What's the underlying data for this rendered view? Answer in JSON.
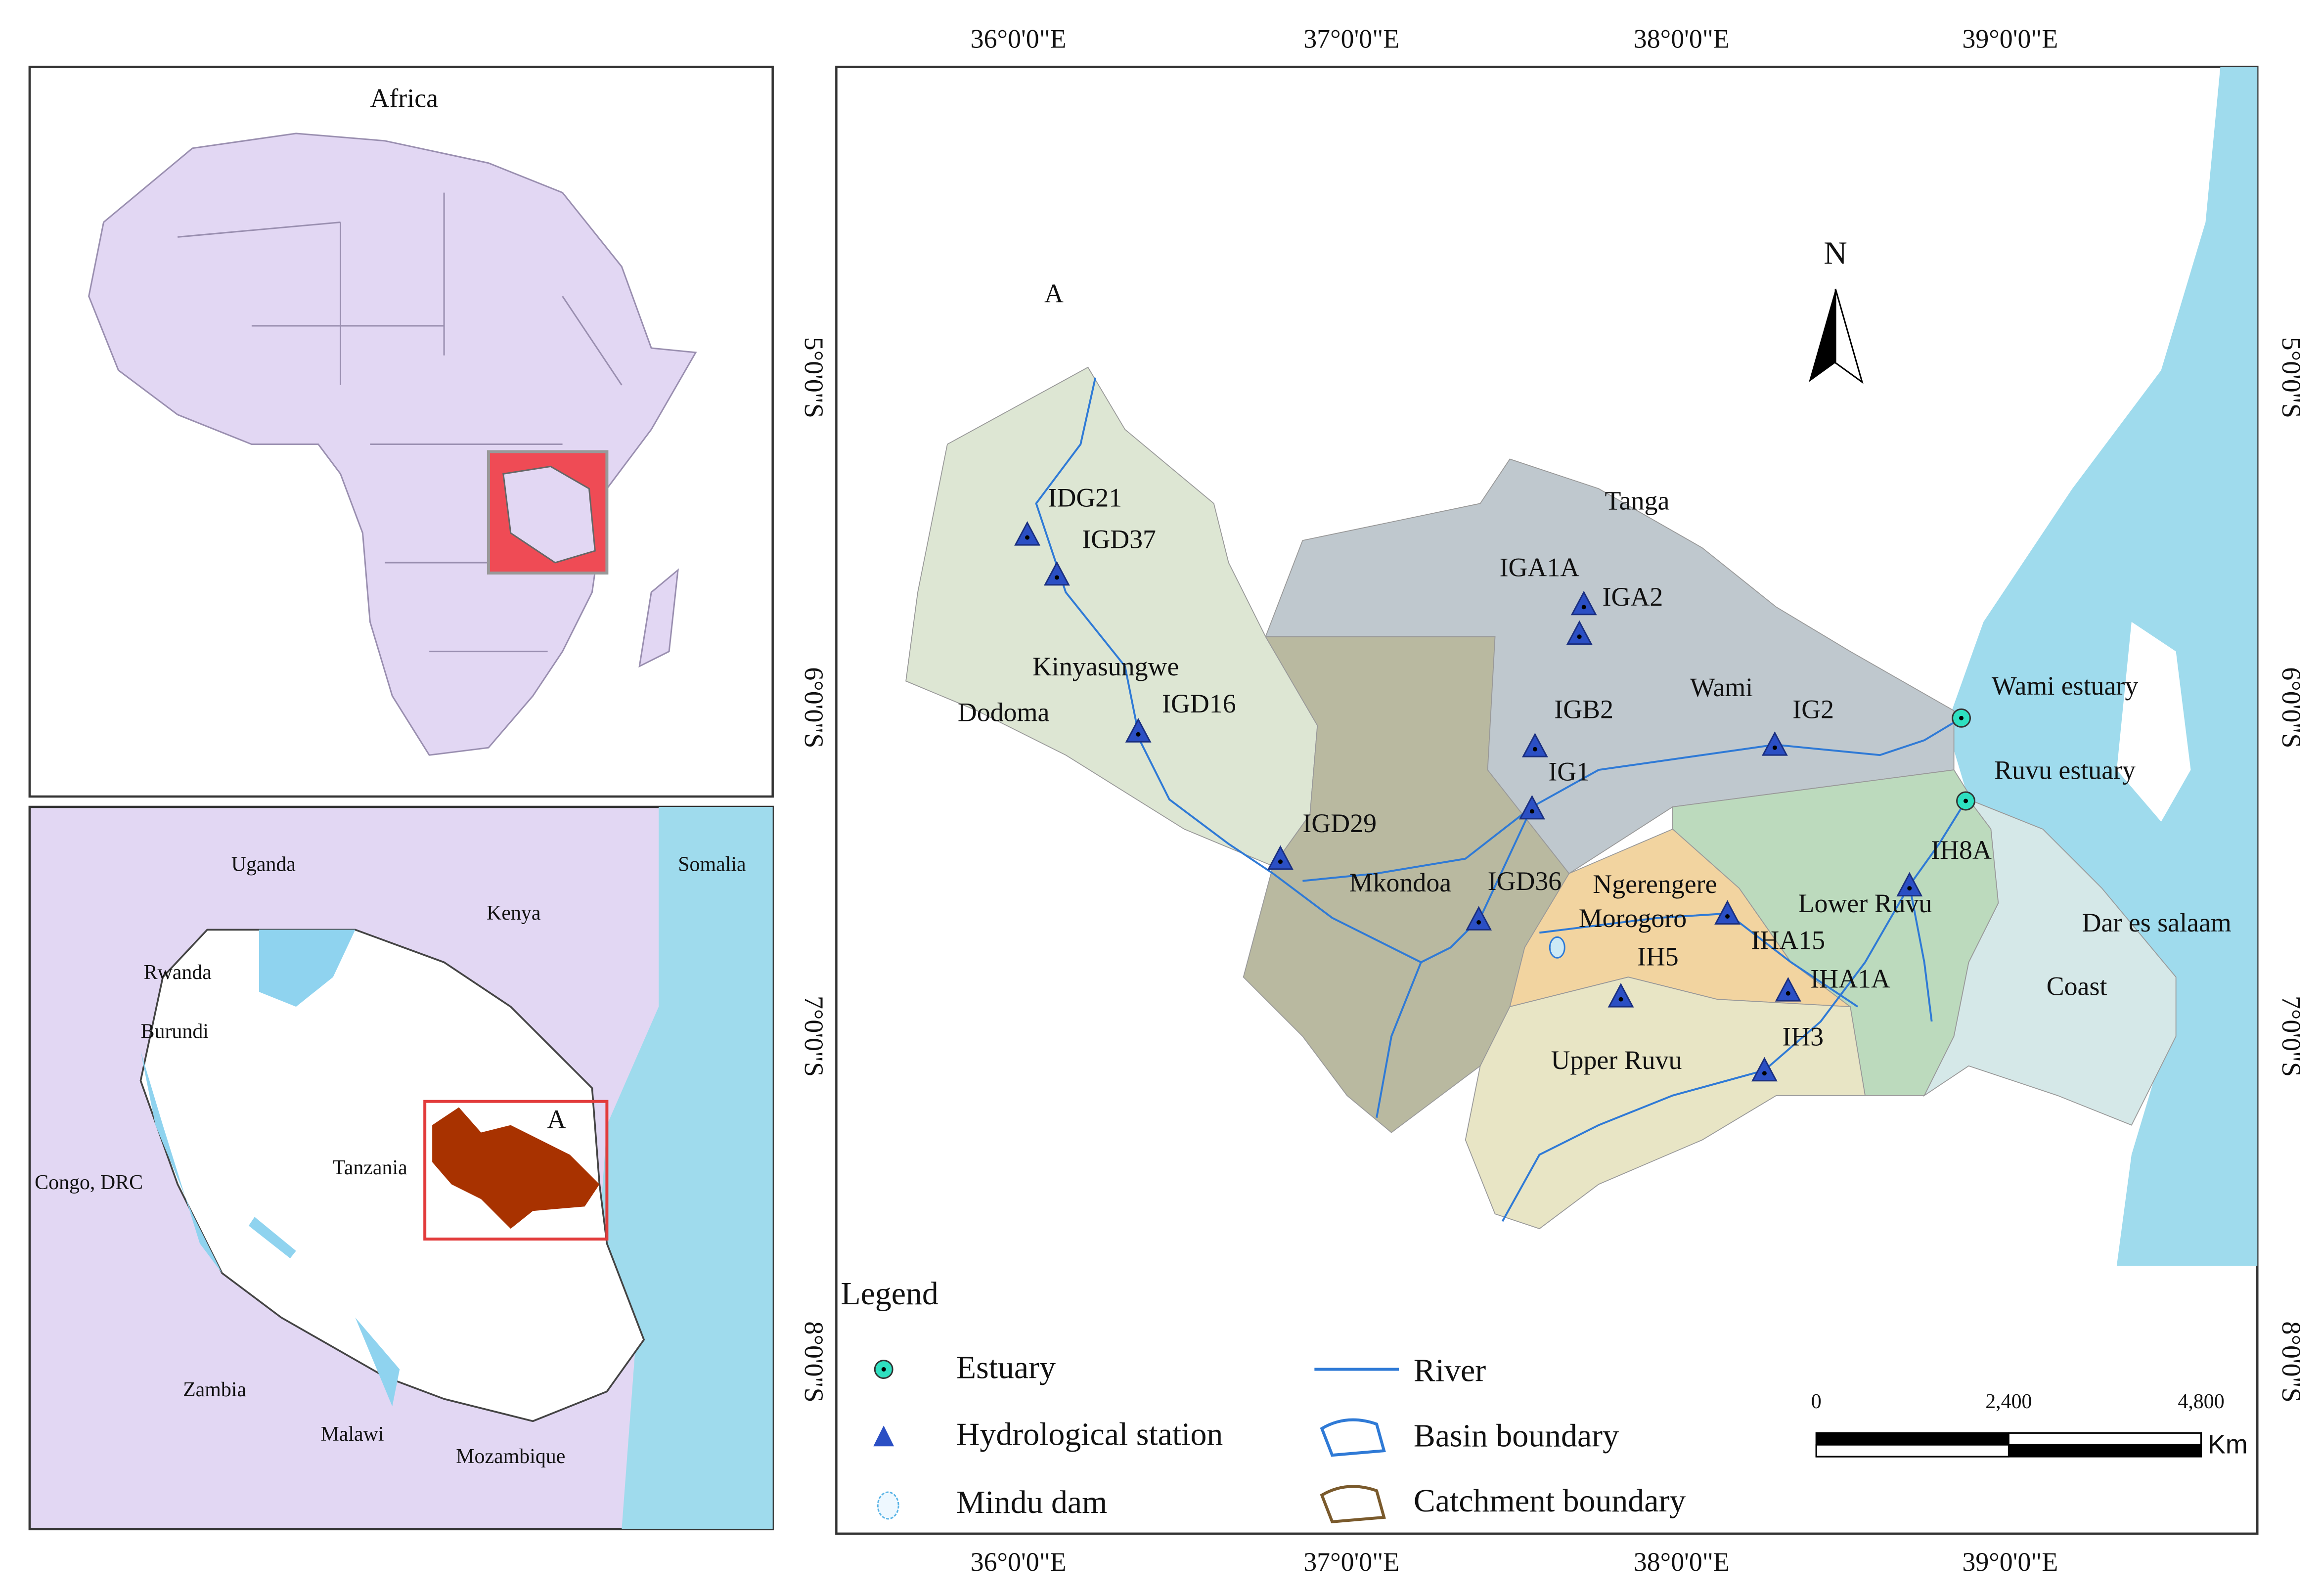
{
  "inset_africa": {
    "title": "Africa"
  },
  "inset_tanzania": {
    "countries": [
      "Uganda",
      "Kenya",
      "Somalia",
      "Rwanda",
      "Burundi",
      "Congo, DRC",
      "Tanzania",
      "Zambia",
      "Malawi",
      "Mozambique"
    ],
    "study_area": "A"
  },
  "main_map": {
    "label": "A",
    "north": "N",
    "top_axis": [
      "36°0'0\"E",
      "37°0'0\"E",
      "38°0'0\"E",
      "39°0'0\"E"
    ],
    "bottom_axis": [
      "36°0'0\"E",
      "37°0'0\"E",
      "38°0'0\"E",
      "39°0'0\"E"
    ],
    "left_axis": [
      "5°0'0\"S",
      "6°0'0\"S",
      "7°0'0\"S",
      "8°0'0\"S"
    ],
    "right_axis": [
      "5°0'0\"S",
      "6°0'0\"S",
      "7°0'0\"S",
      "8°0'0\"S"
    ],
    "places": [
      "Tanga",
      "Dodoma",
      "Kinyasungwe",
      "Wami",
      "Mkondoa",
      "Ngerengere",
      "Morogoro",
      "Lower Ruvu",
      "Dar  es salaam",
      "Coast",
      "Upper Ruvu"
    ],
    "stations": [
      "IDG21",
      "IGD37",
      "IGA1A",
      "IGA2",
      "IGD16",
      "IGB2",
      "IG2",
      "IG1",
      "IGD29",
      "IGD36",
      "IH8A",
      "IHA15",
      "IHA1A",
      "IH5",
      "IH3"
    ],
    "estuaries": [
      "Wami estuary",
      "Ruvu estuary"
    ]
  },
  "legend": {
    "title": "Legend",
    "items": [
      "Estuary",
      "Hydrological station",
      "Mindu dam",
      "River",
      "Basin boundary",
      "Catchment boundary"
    ]
  },
  "scale_bar": {
    "labels": [
      "0",
      "2,400",
      "4,800"
    ],
    "unit": "Km"
  }
}
